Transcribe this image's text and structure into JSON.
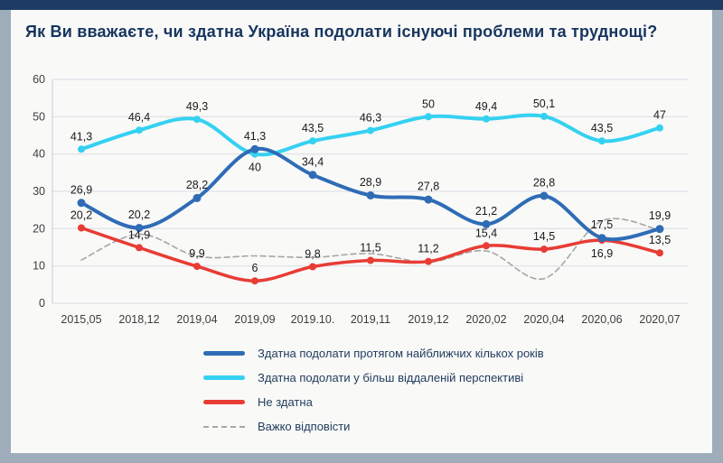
{
  "theme": {
    "top_bar": "#1e3c63",
    "outer_bg": "#9fadbb",
    "card_bg": "#f9f9f8",
    "title_color": "#16355e"
  },
  "chart_data": {
    "type": "line",
    "title": "Як Ви вважаєте, чи здатна Україна подолати існуючі проблеми та труднощі?",
    "categories": [
      "2015,05",
      "2018,12",
      "2019,04",
      "2019,09",
      "2019.10.",
      "2019,11",
      "2019,12",
      "2020,02",
      "2020,04",
      "2020,06",
      "2020,07"
    ],
    "y_ticks": [
      0,
      10,
      20,
      30,
      40,
      50,
      60
    ],
    "ylim": [
      0,
      60
    ],
    "grid": "horizontal",
    "legend_position": "bottom",
    "decimal_separator": ",",
    "series": [
      {
        "key": "near-term",
        "name": "Здатна подолати протягом найближчих кількох років",
        "color": "#2f6cb6",
        "style": "solid",
        "stroke_width": 4,
        "marker_radius": 4.5,
        "show_labels": true,
        "labels_below": [],
        "values": [
          26.9,
          20.2,
          28.2,
          41.3,
          34.4,
          28.9,
          27.8,
          21.2,
          28.8,
          17.5,
          19.9
        ]
      },
      {
        "key": "long-term",
        "name": "Здатна подолати у більш віддаленій перспективі",
        "color": "#35d1f1",
        "style": "solid",
        "stroke_width": 4,
        "marker_radius": 4,
        "show_labels": true,
        "labels_below": [
          3
        ],
        "values": [
          41.3,
          46.4,
          49.3,
          40,
          43.5,
          46.3,
          50,
          49.4,
          50.1,
          43.5,
          47
        ]
      },
      {
        "key": "not-able",
        "name": "Не здатна",
        "color": "#e83c34",
        "style": "solid",
        "stroke_width": 3.5,
        "marker_radius": 4,
        "show_labels": true,
        "labels_below": [
          9
        ],
        "values": [
          20.2,
          14.9,
          9.9,
          6,
          9.8,
          11.5,
          11.2,
          15.4,
          14.5,
          16.9,
          13.5
        ]
      },
      {
        "key": "hard-to-say",
        "name": "Важко відповісти",
        "color": "#a6a6a6",
        "style": "dashed",
        "stroke_width": 1.6,
        "marker_radius": 0,
        "show_labels": false,
        "labels_below": [],
        "values": [
          11.6,
          18.5,
          12.6,
          12.7,
          12.3,
          13.3,
          11,
          14,
          6.6,
          22.1,
          19.6
        ]
      }
    ]
  }
}
